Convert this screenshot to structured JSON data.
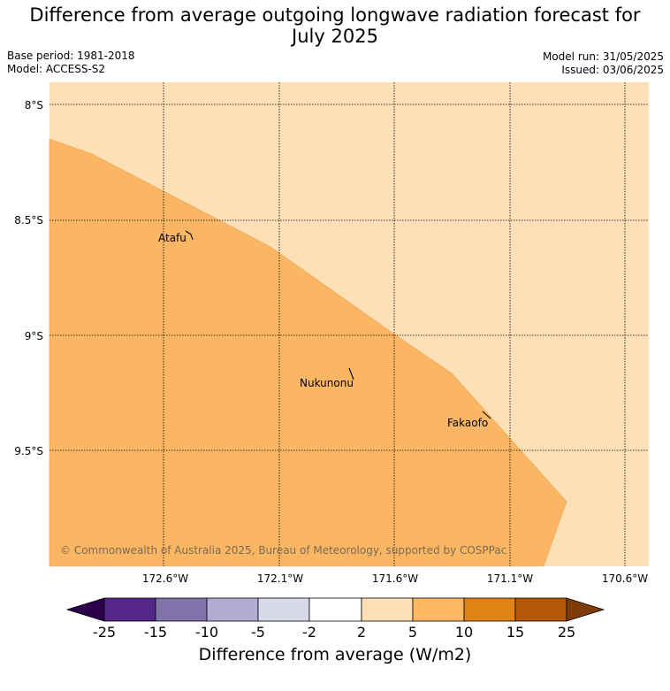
{
  "title_line1": "Difference from average outgoing longwave radiation forecast for",
  "title_line2": "July 2025",
  "base_period": "Base period: 1981-2018",
  "model": "Model: ACCESS-S2",
  "model_run": "Model run: 31/05/2025",
  "issued": "Issued: 03/06/2025",
  "lat_labels": [
    "8°S",
    "8.5°S",
    "9°S",
    "9.5°S"
  ],
  "lon_labels": [
    "172.6°W",
    "172.1°W",
    "171.6°W",
    "171.1°W",
    "170.6°W"
  ],
  "places": [
    "Atafu",
    "Nukunonu",
    "Fakaofo"
  ],
  "copyright": "© Commonwealth of Australia 2025, Bureau of Meteorology, supported by COSPPac",
  "colorbar": {
    "ticks": [
      "-25",
      "-15",
      "-10",
      "-5",
      "-2",
      "2",
      "5",
      "10",
      "15",
      "25"
    ],
    "colors": [
      "#2d004b",
      "#542788",
      "#8073ac",
      "#b2abd2",
      "#d8daeb",
      "#ffffff",
      "#fee0b6",
      "#fdb863",
      "#e08214",
      "#b35806",
      "#7f3b08"
    ],
    "label": "Difference from average (W/m2)"
  },
  "map_fill": {
    "light_region": "#fde0b6",
    "dark_region": "#fbb663"
  }
}
